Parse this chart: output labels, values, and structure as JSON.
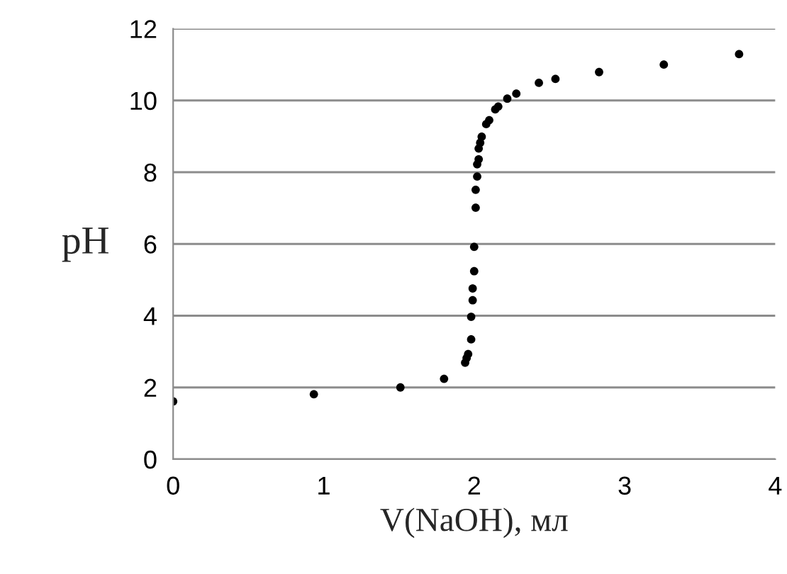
{
  "chart_data": {
    "type": "scatter",
    "xlabel": "V(NaOH), мл",
    "ylabel": "pH",
    "x": [
      0,
      0.935,
      1.51,
      1.8,
      1.94,
      1.95,
      1.96,
      1.98,
      1.98,
      1.99,
      1.99,
      2.0,
      2.0,
      2.01,
      2.01,
      2.02,
      2.02,
      2.03,
      2.03,
      2.04,
      2.05,
      2.08,
      2.1,
      2.14,
      2.16,
      2.22,
      2.28,
      2.43,
      2.54,
      2.83,
      3.26,
      3.76
    ],
    "series": [
      {
        "color": "#000000",
        "values": [
          1.61,
          1.81,
          2.0,
          2.24,
          2.69,
          2.82,
          2.93,
          3.34,
          3.97,
          4.43,
          4.76,
          5.24,
          5.92,
          7.01,
          7.51,
          7.88,
          8.22,
          8.36,
          8.66,
          8.82,
          8.99,
          9.34,
          9.45,
          9.75,
          9.83,
          10.05,
          10.19,
          10.49,
          10.6,
          10.79,
          11.0,
          11.29
        ]
      }
    ],
    "marker": "circle",
    "xlim": [
      0,
      4
    ],
    "xticks": [
      0,
      1,
      2,
      3,
      4
    ],
    "ylim": [
      0,
      12
    ],
    "yticks": [
      0,
      2,
      4,
      6,
      8,
      10,
      12
    ],
    "grid": "y",
    "legend": false
  }
}
